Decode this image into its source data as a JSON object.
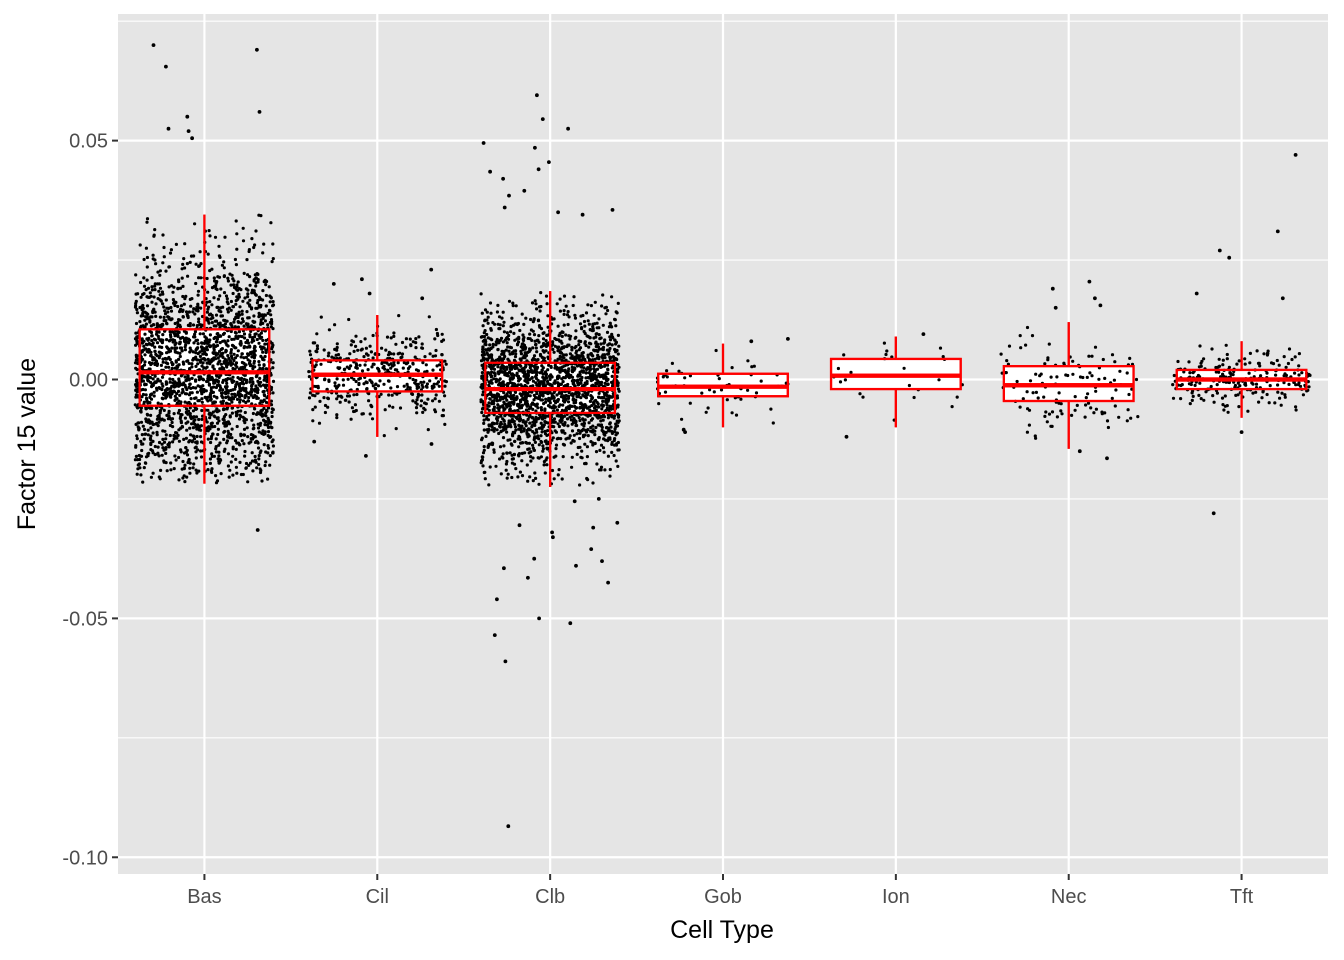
{
  "chart_data": {
    "type": "box",
    "xlabel": "Cell Type",
    "ylabel": "Factor 15 value",
    "categories": [
      "Bas",
      "Cil",
      "Clb",
      "Gob",
      "Ion",
      "Nec",
      "Tft"
    ],
    "ylim": [
      -0.1035,
      0.0765
    ],
    "y_ticks": [
      -0.1,
      -0.05,
      0.0,
      0.05
    ],
    "y_tick_labels": [
      "-0.10",
      "-0.05",
      "0.00",
      "0.05"
    ],
    "grid": true,
    "panel_background": "#e5e5e5",
    "grid_color": "#ffffff",
    "box_color": "#ff0000",
    "point_color": "#000000",
    "boxes": [
      {
        "category": "Bas",
        "q1": -0.0055,
        "median": 0.0015,
        "q3": 0.0105,
        "whisker_low": -0.0218,
        "whisker_high": 0.0345,
        "n_points": 2200,
        "outliers": [
          0.07,
          0.069,
          0.0655,
          0.056,
          0.055,
          0.0525,
          0.052,
          0.0505,
          -0.0315
        ]
      },
      {
        "category": "Cil",
        "q1": -0.0025,
        "median": 0.001,
        "q3": 0.004,
        "whisker_low": -0.012,
        "whisker_high": 0.0135,
        "n_points": 420,
        "outliers": [
          0.023,
          0.021,
          0.02,
          0.018,
          0.017,
          -0.016,
          -0.0135,
          -0.013
        ]
      },
      {
        "category": "Clb",
        "q1": -0.007,
        "median": -0.002,
        "q3": 0.0035,
        "whisker_low": -0.0225,
        "whisker_high": 0.0185,
        "n_points": 2100,
        "outliers": [
          0.0595,
          0.0545,
          0.0525,
          0.0495,
          0.0485,
          0.0455,
          0.044,
          0.0435,
          0.042,
          0.0395,
          0.0385,
          0.036,
          0.0355,
          0.035,
          0.0345,
          -0.025,
          -0.0255,
          -0.03,
          -0.0305,
          -0.031,
          -0.032,
          -0.033,
          -0.0355,
          -0.0375,
          -0.038,
          -0.039,
          -0.0395,
          -0.0415,
          -0.0425,
          -0.046,
          -0.05,
          -0.051,
          -0.0535,
          -0.059,
          -0.0935
        ]
      },
      {
        "category": "Gob",
        "q1": -0.0035,
        "median": -0.0015,
        "q3": 0.0012,
        "whisker_low": -0.01,
        "whisker_high": 0.0075,
        "n_points": 60,
        "outliers": [
          0.0085,
          0.008,
          -0.011,
          -0.0105
        ]
      },
      {
        "category": "Ion",
        "q1": -0.002,
        "median": 0.0008,
        "q3": 0.0043,
        "whisker_low": -0.01,
        "whisker_high": 0.009,
        "n_points": 25,
        "outliers": [
          0.0095,
          -0.012
        ]
      },
      {
        "category": "Nec",
        "q1": -0.0045,
        "median": -0.0012,
        "q3": 0.0028,
        "whisker_low": -0.0145,
        "whisker_high": 0.012,
        "n_points": 120,
        "outliers": [
          0.0205,
          0.019,
          0.017,
          0.0155,
          0.015,
          -0.015,
          -0.0165
        ]
      },
      {
        "category": "Tft",
        "q1": -0.002,
        "median": 0.0,
        "q3": 0.002,
        "whisker_low": -0.008,
        "whisker_high": 0.008,
        "n_points": 230,
        "outliers": [
          0.047,
          0.031,
          0.027,
          0.0255,
          0.018,
          0.017,
          -0.028,
          -0.011
        ]
      }
    ]
  }
}
